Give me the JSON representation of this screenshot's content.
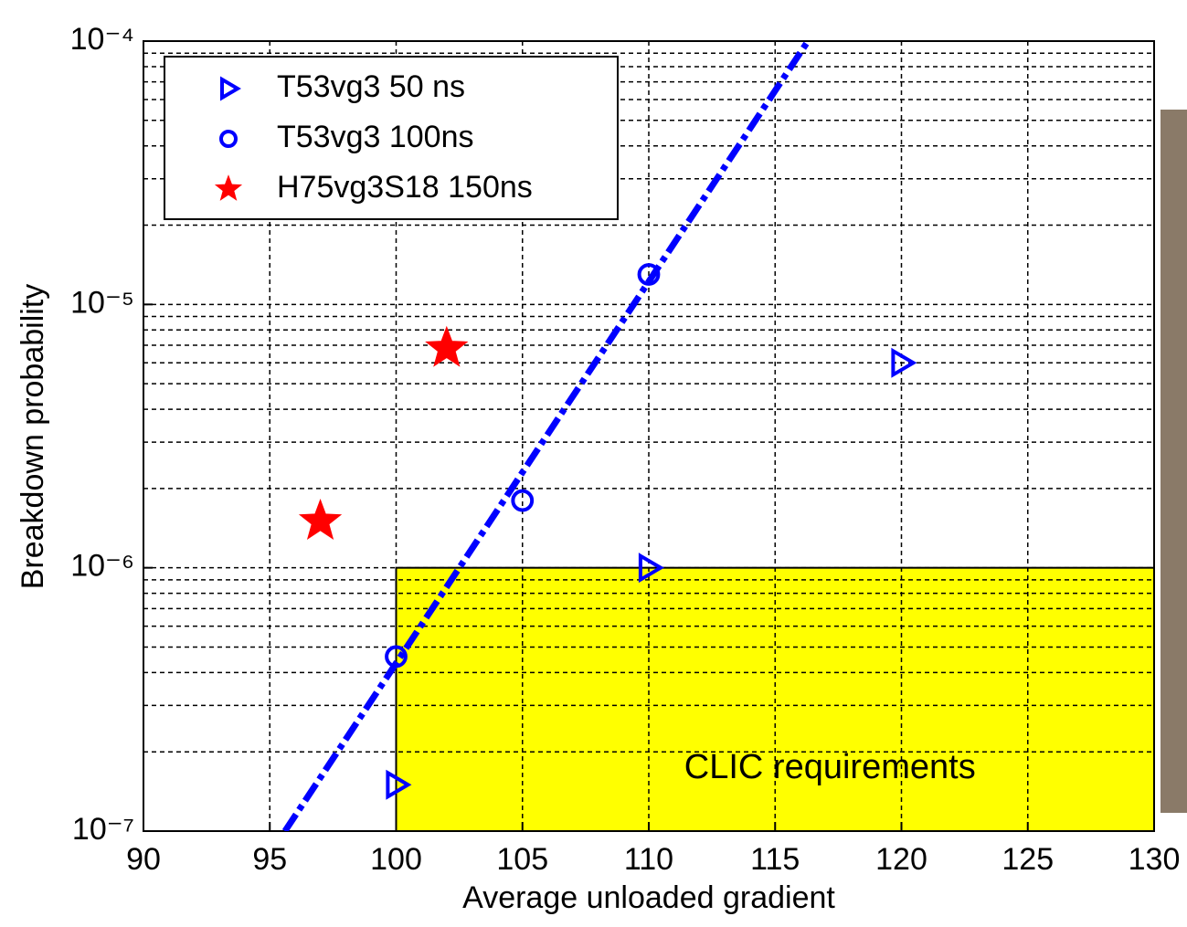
{
  "chart_data": {
    "type": "scatter",
    "x_label": "Average unloaded gradient",
    "y_label": "Breakdown probability",
    "xlim": [
      90,
      130
    ],
    "xticks": [
      90,
      95,
      100,
      105,
      110,
      115,
      120,
      125,
      130
    ],
    "ylim": [
      1e-07,
      0.0001
    ],
    "log_y": true,
    "yticks": [
      {
        "value": 1e-07,
        "label": "10⁻⁷"
      },
      {
        "value": 1e-06,
        "label": "10⁻⁶"
      },
      {
        "value": 1e-05,
        "label": "10⁻⁵"
      },
      {
        "value": 0.0001,
        "label": "10⁻⁴"
      }
    ],
    "yminor": [
      2e-07,
      3e-07,
      4e-07,
      5e-07,
      6e-07,
      7e-07,
      8e-07,
      9e-07,
      2e-06,
      3e-06,
      4e-06,
      5e-06,
      6e-06,
      7e-06,
      8e-06,
      9e-06,
      2e-05,
      3e-05,
      4e-05,
      5e-05,
      6e-05,
      7e-05,
      8e-05,
      9e-05
    ],
    "grid": true,
    "legend": "upper left",
    "series": [
      {
        "name": "T53vg3 50 ns",
        "marker": "triangle",
        "color": "#0000ff",
        "x": [
          100,
          110,
          120
        ],
        "values": [
          1.5e-07,
          1e-06,
          6e-06
        ]
      },
      {
        "name": "T53vg3 100ns",
        "marker": "circle",
        "color": "#0000ff",
        "x": [
          100,
          105,
          110
        ],
        "values": [
          4.6e-07,
          1.8e-06,
          1.3e-05
        ]
      },
      {
        "name": "H75vg3S18 150ns",
        "marker": "star",
        "color": "#ff0000",
        "x": [
          97,
          102
        ],
        "values": [
          1.5e-06,
          6.8e-06
        ]
      }
    ],
    "fit": {
      "color": "#0000ff",
      "x": [
        95.6,
        116.3
      ],
      "values": [
        1e-07,
        0.0001
      ]
    },
    "region": {
      "xlim": [
        100,
        130
      ],
      "ylim": [
        1e-07,
        1e-06
      ],
      "color": "#ffff00",
      "label": "CLIC requirements",
      "label_color": "#cc0000"
    }
  }
}
